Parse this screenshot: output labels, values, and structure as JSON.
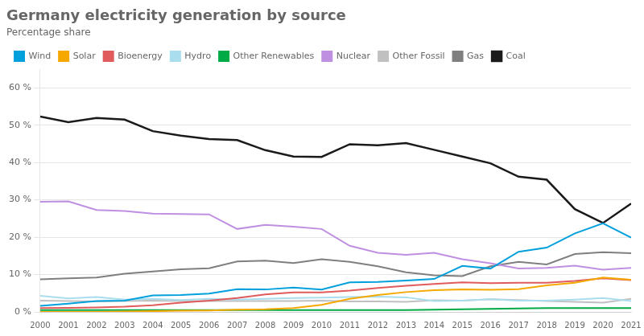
{
  "chart_data": {
    "type": "line",
    "title": "Germany electricity generation by source",
    "subtitle": "Percentage share",
    "x": [
      2000,
      2001,
      2002,
      2003,
      2004,
      2005,
      2006,
      2007,
      2008,
      2009,
      2010,
      2011,
      2012,
      2013,
      2014,
      2015,
      2016,
      2017,
      2018,
      2019,
      2020,
      2021
    ],
    "series": [
      {
        "name": "Wind",
        "color": "#00a0dc",
        "values": [
          1.6,
          2.2,
          2.9,
          3.0,
          4.4,
          4.5,
          4.9,
          6.1,
          6.0,
          6.5,
          6.0,
          7.9,
          8.0,
          8.4,
          8.8,
          12.3,
          11.6,
          16.1,
          17.2,
          21.0,
          23.7,
          19.9
        ]
      },
      {
        "name": "Solar",
        "color": "#f5a800",
        "values": [
          0.0,
          0.0,
          0.0,
          0.1,
          0.2,
          0.3,
          0.4,
          0.6,
          0.7,
          1.0,
          1.9,
          3.5,
          4.5,
          5.3,
          5.8,
          6.0,
          5.9,
          6.1,
          7.1,
          7.8,
          9.2,
          8.6
        ]
      },
      {
        "name": "Bioenergy",
        "color": "#e05c5c",
        "values": [
          1.0,
          1.1,
          1.2,
          1.4,
          1.8,
          2.5,
          3.0,
          3.7,
          4.7,
          5.2,
          5.2,
          5.7,
          6.4,
          7.0,
          7.5,
          7.9,
          7.7,
          7.8,
          7.8,
          8.3,
          9.0,
          8.5
        ]
      },
      {
        "name": "Hydro",
        "color": "#aaddee",
        "values": [
          4.3,
          3.6,
          4.0,
          3.3,
          3.5,
          3.2,
          3.5,
          3.3,
          3.5,
          3.7,
          3.8,
          4.0,
          4.1,
          3.9,
          2.9,
          3.0,
          3.4,
          3.0,
          3.0,
          3.3,
          3.7,
          2.9
        ]
      },
      {
        "name": "Other Renewables",
        "color": "#00aa44",
        "values": [
          0.5,
          0.5,
          0.5,
          0.5,
          0.5,
          0.5,
          0.5,
          0.5,
          0.5,
          0.5,
          0.5,
          0.5,
          0.5,
          0.5,
          0.6,
          0.7,
          0.8,
          0.9,
          1.0,
          1.0,
          1.0,
          1.0
        ]
      },
      {
        "name": "Nuclear",
        "color": "#bf8fe1",
        "values": [
          29.5,
          29.6,
          27.3,
          27.0,
          26.3,
          26.2,
          26.1,
          22.2,
          23.3,
          22.8,
          22.2,
          17.7,
          15.8,
          15.3,
          15.8,
          14.1,
          13.0,
          11.6,
          11.8,
          12.4,
          11.3,
          11.8
        ]
      },
      {
        "name": "Other Fossil",
        "color": "#c0c0c0",
        "values": [
          3.0,
          2.9,
          2.8,
          2.9,
          3.0,
          2.9,
          2.9,
          2.9,
          2.9,
          2.9,
          3.0,
          2.8,
          2.8,
          2.7,
          3.1,
          3.0,
          3.4,
          3.2,
          2.9,
          2.7,
          2.5,
          3.5
        ]
      },
      {
        "name": "Gas",
        "color": "#7f7f7f",
        "values": [
          8.7,
          9.0,
          9.2,
          10.2,
          10.8,
          11.4,
          11.7,
          13.5,
          13.7,
          13.1,
          14.1,
          13.4,
          12.2,
          10.6,
          9.8,
          9.6,
          12.2,
          13.4,
          12.7,
          15.5,
          16.0,
          15.7
        ]
      },
      {
        "name": "Coal",
        "color": "#1a1a1a",
        "values": [
          52.3,
          50.8,
          51.9,
          51.5,
          48.4,
          47.2,
          46.3,
          46.0,
          43.3,
          41.6,
          41.5,
          44.9,
          44.6,
          45.2,
          43.4,
          41.6,
          39.8,
          36.2,
          35.4,
          27.5,
          23.8,
          29.0
        ]
      }
    ],
    "xlim": [
      2000,
      2021
    ],
    "xticks": [
      2000,
      2001,
      2002,
      2003,
      2004,
      2005,
      2006,
      2007,
      2008,
      2009,
      2010,
      2011,
      2012,
      2013,
      2014,
      2015,
      2016,
      2017,
      2018,
      2019,
      2020,
      2021
    ],
    "ylim": [
      0,
      65
    ],
    "yticks": [
      {
        "value": 0,
        "label": "0 %"
      },
      {
        "value": 10,
        "label": "10 %"
      },
      {
        "value": 20,
        "label": "20 %"
      },
      {
        "value": 30,
        "label": "30 %"
      },
      {
        "value": 40,
        "label": "40 %"
      },
      {
        "value": 50,
        "label": "50 %"
      },
      {
        "value": 60,
        "label": "60 %"
      }
    ],
    "grid": "y",
    "legend": "upper left"
  }
}
